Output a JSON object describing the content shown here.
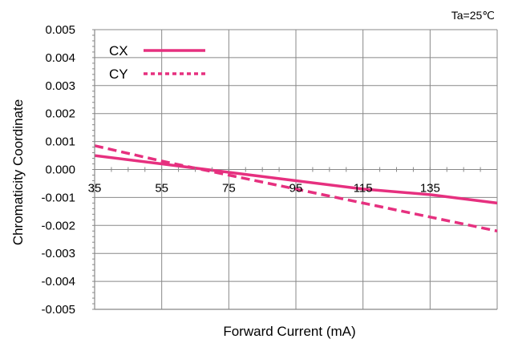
{
  "note": "Ta=25℃",
  "chart_data": {
    "type": "line",
    "xlabel": "Forward Current (mA)",
    "ylabel": "Chromaticity Coordinate",
    "xlim": [
      35,
      155
    ],
    "ylim": [
      -0.005,
      0.005
    ],
    "x_ticks": [
      35,
      55,
      75,
      95,
      115,
      135
    ],
    "x_tick_labels": [
      "35",
      "55",
      "75",
      "95",
      "115",
      "135"
    ],
    "y_ticks": [
      0.005,
      0.004,
      0.003,
      0.002,
      0.001,
      0.0,
      -0.001,
      -0.002,
      -0.003,
      -0.004,
      -0.005
    ],
    "y_tick_labels": [
      "0.005",
      "0.004",
      "0.003",
      "0.002",
      "0.001",
      "0.000",
      "-0.001",
      "-0.002",
      "-0.003",
      "-0.004",
      "-0.005"
    ],
    "grid": true,
    "legend_position": "top-left",
    "series": [
      {
        "name": "CX",
        "style": "solid",
        "color": "#e6307f",
        "x": [
          35,
          55,
          75,
          95,
          115,
          135,
          155
        ],
        "y": [
          0.0005,
          0.0002,
          -0.0001,
          -0.0004,
          -0.0007,
          -0.0009,
          -0.0012
        ]
      },
      {
        "name": "CY",
        "style": "dashed",
        "color": "#e6307f",
        "x": [
          35,
          55,
          75,
          95,
          115,
          135,
          155
        ],
        "y": [
          0.00085,
          0.0003,
          -0.0002,
          -0.0007,
          -0.0012,
          -0.0017,
          -0.0022
        ]
      }
    ]
  }
}
